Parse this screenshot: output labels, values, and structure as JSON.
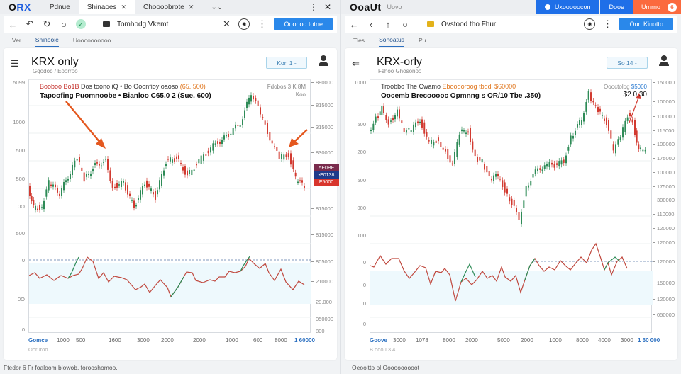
{
  "left": {
    "strip": {
      "logo_prefix": "O",
      "logo_suffix": "RX",
      "tabs": [
        {
          "label": "Pdnue",
          "active": false,
          "closable": false
        },
        {
          "label": "Shinaoes",
          "active": true,
          "closable": true
        },
        {
          "label": "Choooobrote",
          "active": false,
          "closable": true
        }
      ],
      "tab_overflow": "⌄⌄",
      "menu_icon": "⋮",
      "close_icon": "✕"
    },
    "address": {
      "url": "Tomhodg Vkemt",
      "cta_label": "Ooonod totne",
      "clear_icon": "✕"
    },
    "subtabs": [
      {
        "label": "Ver",
        "active": false
      },
      {
        "label": "Shinooie",
        "active": true
      },
      {
        "label": "Uoooooooooo",
        "active": false
      }
    ],
    "card": {
      "title": "KRX only",
      "subtitle": "Gqodob / Eoorroo",
      "range_label": "Kon 1 -",
      "legend_line1_red": "Booboo Bo1B",
      "legend_line1_mid": " Dos toono iQ • Bo Ooonfioy oaoso ",
      "legend_line1_orange": "(65. 500)",
      "legend_line2": "Tapoofing Puomnoobe • Bianloo C65.0 2 (Sue. 600)",
      "legend_right_1": "Fdobos 3 K 8M",
      "legend_right_2": "Koo",
      "tags": [
        "ΛE0BE",
        "•E0138",
        "E5000"
      ],
      "y_left": [
        "5099",
        "1000",
        "500",
        "500",
        "0O",
        "500",
        "0",
        "0O",
        "0"
      ],
      "y_right": [
        "880000",
        "815000",
        "315000",
        "830000",
        "815000",
        "815000",
        "805000",
        "210000",
        "20.000",
        "050000",
        "800"
      ],
      "x_labels": [
        "Gomce",
        "1000",
        "500",
        "1600",
        "3000",
        "2000",
        "2000",
        "1000",
        "600",
        "8000",
        "1 60000"
      ],
      "x_sub": "Ooruroo"
    },
    "footnote": "Ftedor 6 Fr foaloom blowob, forooshomoo."
  },
  "right": {
    "strip": {
      "title": "OoaUt",
      "subtitle": "Uovo",
      "btn_blue_1": "Uxooooocon",
      "btn_blue_2": "Dooe",
      "btn_orange": "Umrno",
      "btn_orange_badge": "6"
    },
    "address": {
      "url": "Ovstood tho Fhur",
      "cta_label": "Oun Kinotto"
    },
    "subtabs": [
      {
        "label": "Tles",
        "active": false
      },
      {
        "label": "Sonoatus",
        "active": true
      },
      {
        "label": "Pu",
        "active": false
      }
    ],
    "card": {
      "title": "KRX-orly",
      "subtitle": "Fshoo Ghosonoo",
      "range_label": "So 14 -",
      "legend_line1_mid": "Troobbo The Cwamo ",
      "legend_line1_orange": "Eboodoroog tbqdl $60000",
      "legend_line2": "Oocemb Brecooooc Opmnng s OR/10  Tbe .350)",
      "legend_right_1a": "Oooctolog ",
      "legend_right_1b": "$5000",
      "legend_right_2": "$2 0.30",
      "y_left": [
        "1000",
        "500",
        "200",
        "500",
        "000",
        "100",
        "0",
        "0",
        "0",
        "0"
      ],
      "y_right": [
        "150000",
        "100000",
        "100000",
        "115000",
        "100000",
        "175000",
        "100000",
        "175000",
        "300000",
        "110000",
        "120000",
        "120000",
        "120000",
        "150000",
        "120000",
        "050000"
      ],
      "x_labels": [
        "Goove",
        "3000",
        "1078",
        "8000",
        "2000",
        "5000",
        "2000",
        "1000",
        "8000",
        "4000",
        "3000",
        "1 60 000"
      ],
      "x_sub": "B ooou 3 4"
    },
    "footnote": "Oeooitto ol Oooooooooot"
  },
  "colors": {
    "up": "#2e8b57",
    "down": "#d23a30",
    "accent": "#2a88ea",
    "arrow": "#e4581f",
    "orange_btn": "#fb6a3e"
  }
}
